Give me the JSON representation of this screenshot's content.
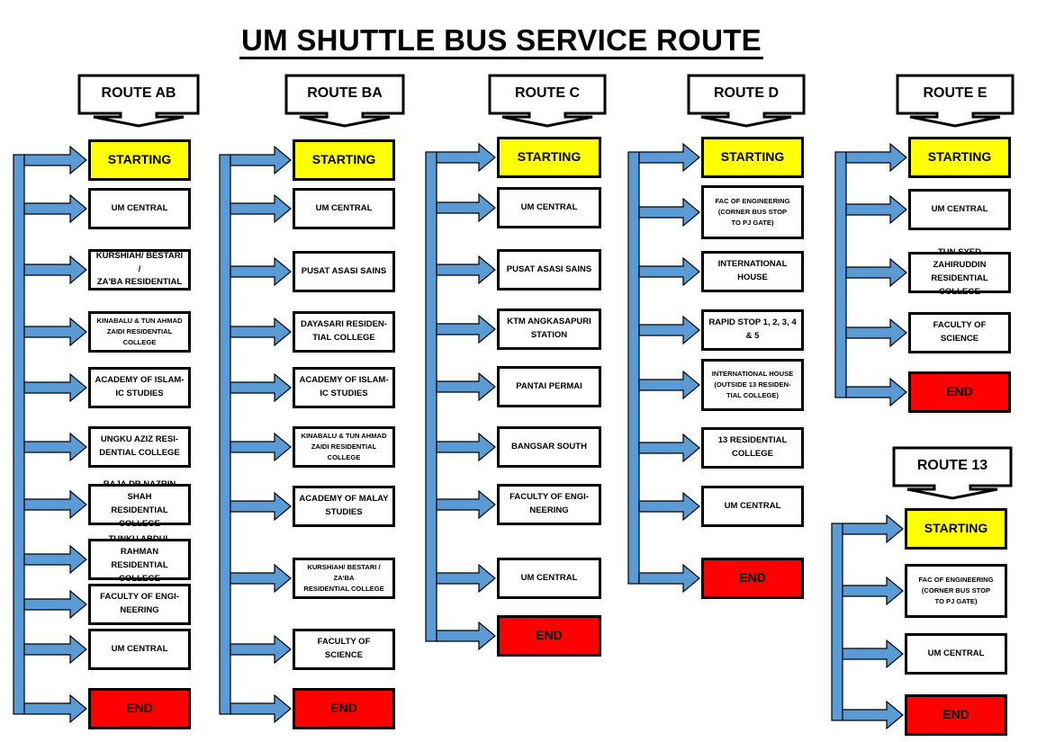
{
  "title": "UM SHUTTLE BUS SERVICE ROUTE",
  "colors": {
    "arrow_fill": "#5b9bd5",
    "start_fill": "#ffff00",
    "end_fill": "#ff0000",
    "stop_fill": "#ffffff"
  },
  "routes": [
    {
      "label": "ROUTE AB",
      "stops": [
        "STARTING",
        "UM CENTRAL",
        "KURSHIAH/ BESTARI /\nZA'BA RESIDENTIAL",
        "KINABALU & TUN AHMAD\nZAIDI RESIDENTIAL COLLEGE",
        "ACADEMY OF ISLAM-\nIC STUDIES",
        "UNGKU AZIZ RESI-\nDENTIAL COLLEGE",
        "RAJA DR NAZRIN SHAH\nRESIDENTIAL COLLEGE",
        "TUNKU ABDUL RAHMAN\nRESIDENTIAL COLLEGE",
        "FACULTY OF ENGI-\nNEERING",
        "UM CENTRAL",
        "END"
      ]
    },
    {
      "label": "ROUTE BA",
      "stops": [
        "STARTING",
        "UM CENTRAL",
        "PUSAT ASASI SAINS",
        "DAYASARI RESIDEN-\nTIAL COLLEGE",
        "ACADEMY OF ISLAM-\nIC STUDIES",
        "KINABALU & TUN AHMAD\nZAIDI RESIDENTIAL COLLEGE",
        "ACADEMY OF MALAY\nSTUDIES",
        "KURSHIAH/ BESTARI / ZA'BA\nRESIDENTIAL COLLEGE",
        "FACULTY OF SCIENCE",
        "END"
      ]
    },
    {
      "label": "ROUTE C",
      "stops": [
        "STARTING",
        "UM CENTRAL",
        "PUSAT ASASI SAINS",
        "KTM ANGKASAPURI\nSTATION",
        "PANTAI PERMAI",
        "BANGSAR SOUTH",
        "FACULTY OF ENGI-\nNEERING",
        "UM CENTRAL",
        "END"
      ]
    },
    {
      "label": "ROUTE D",
      "stops": [
        "STARTING",
        "FAC OF ENGINEERING\n(CORNER BUS STOP\nTO PJ GATE)",
        "INTERNATIONAL\nHOUSE",
        "RAPID STOP 1, 2, 3, 4\n& 5",
        "INTERNATIONAL HOUSE\n(OUTSIDE 13 RESIDEN-\nTIAL COLLEGE)",
        "13 RESIDENTIAL\nCOLLEGE",
        "UM CENTRAL",
        "END"
      ]
    },
    {
      "label": "ROUTE E",
      "stops": [
        "STARTING",
        "UM CENTRAL",
        "TUN SYED ZAHIRUDDIN\nRESIDENTIAL COLLEGE",
        "FACULTY OF SCIENCE",
        "END"
      ]
    },
    {
      "label": "ROUTE 13",
      "stops": [
        "STARTING",
        "FAC OF ENGINEERING\n(CORNER BUS STOP\nTO PJ GATE)",
        "UM CENTRAL",
        "END"
      ]
    }
  ]
}
